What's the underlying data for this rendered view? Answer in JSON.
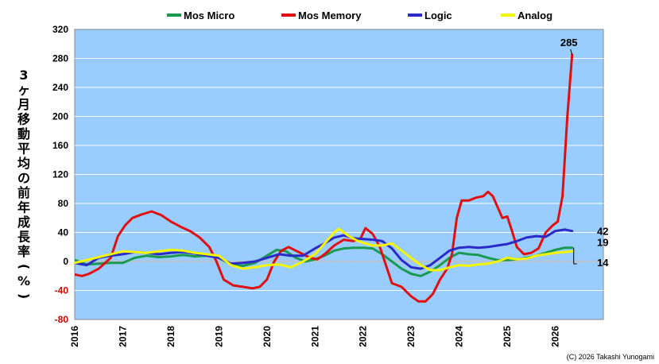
{
  "chart_data": {
    "type": "line",
    "title": "",
    "xlabel": "",
    "ylabel": "3ヶ月移動平均の前年成長率（%）",
    "ylim": [
      -80,
      320
    ],
    "yticks": [
      -80,
      -40,
      0,
      40,
      80,
      120,
      160,
      200,
      240,
      280,
      320
    ],
    "xlim": [
      2016.0,
      2027.0
    ],
    "xticks": [
      "2016",
      "2017",
      "2018",
      "2019",
      "2020",
      "2021",
      "2022",
      "2023",
      "2024",
      "2025",
      "2026"
    ],
    "grid": "horizontal",
    "legend_position": "top",
    "background_color": "#99ccff",
    "zero_line_color": "#c0c0c0",
    "negative_tick_color": "#cc0000",
    "credit": "(C)  2026 Takashi Yunogami",
    "series": [
      {
        "name": "Mos Micro",
        "color": "#1a9a50",
        "end_label": "19",
        "points": [
          [
            2016.0,
            2
          ],
          [
            2016.25,
            -4
          ],
          [
            2016.5,
            -3
          ],
          [
            2016.75,
            -2
          ],
          [
            2017.0,
            -2
          ],
          [
            2017.25,
            5
          ],
          [
            2017.5,
            8
          ],
          [
            2017.75,
            6
          ],
          [
            2018.0,
            7
          ],
          [
            2018.25,
            9
          ],
          [
            2018.5,
            7
          ],
          [
            2018.75,
            8
          ],
          [
            2019.0,
            5
          ],
          [
            2019.25,
            -4
          ],
          [
            2019.5,
            -6
          ],
          [
            2019.75,
            -2
          ],
          [
            2020.0,
            8
          ],
          [
            2020.2,
            16
          ],
          [
            2020.4,
            14
          ],
          [
            2020.6,
            5
          ],
          [
            2020.8,
            0
          ],
          [
            2021.0,
            3
          ],
          [
            2021.2,
            8
          ],
          [
            2021.4,
            15
          ],
          [
            2021.6,
            18
          ],
          [
            2021.8,
            19
          ],
          [
            2022.0,
            19
          ],
          [
            2022.2,
            18
          ],
          [
            2022.4,
            10
          ],
          [
            2022.6,
            0
          ],
          [
            2022.8,
            -10
          ],
          [
            2023.0,
            -17
          ],
          [
            2023.2,
            -20
          ],
          [
            2023.4,
            -14
          ],
          [
            2023.6,
            -5
          ],
          [
            2023.8,
            5
          ],
          [
            2024.0,
            12
          ],
          [
            2024.2,
            10
          ],
          [
            2024.4,
            9
          ],
          [
            2024.6,
            5
          ],
          [
            2024.8,
            2
          ],
          [
            2025.0,
            2
          ],
          [
            2025.2,
            3
          ],
          [
            2025.4,
            5
          ],
          [
            2025.6,
            8
          ],
          [
            2025.8,
            12
          ],
          [
            2026.0,
            16
          ],
          [
            2026.2,
            19
          ],
          [
            2026.35,
            19
          ]
        ]
      },
      {
        "name": "Mos Memory",
        "color": "#e01010",
        "end_label": "285",
        "points": [
          [
            2016.0,
            -18
          ],
          [
            2016.15,
            -20
          ],
          [
            2016.3,
            -17
          ],
          [
            2016.5,
            -10
          ],
          [
            2016.75,
            5
          ],
          [
            2016.9,
            35
          ],
          [
            2017.05,
            50
          ],
          [
            2017.2,
            60
          ],
          [
            2017.4,
            65
          ],
          [
            2017.6,
            69
          ],
          [
            2017.8,
            64
          ],
          [
            2018.0,
            55
          ],
          [
            2018.2,
            48
          ],
          [
            2018.4,
            42
          ],
          [
            2018.6,
            33
          ],
          [
            2018.8,
            20
          ],
          [
            2018.95,
            0
          ],
          [
            2019.1,
            -25
          ],
          [
            2019.3,
            -33
          ],
          [
            2019.5,
            -35
          ],
          [
            2019.7,
            -37
          ],
          [
            2019.85,
            -35
          ],
          [
            2020.0,
            -25
          ],
          [
            2020.15,
            0
          ],
          [
            2020.3,
            15
          ],
          [
            2020.45,
            20
          ],
          [
            2020.6,
            15
          ],
          [
            2020.75,
            10
          ],
          [
            2020.9,
            5
          ],
          [
            2021.05,
            3
          ],
          [
            2021.2,
            10
          ],
          [
            2021.4,
            22
          ],
          [
            2021.6,
            30
          ],
          [
            2021.8,
            28
          ],
          [
            2021.95,
            32
          ],
          [
            2022.05,
            46
          ],
          [
            2022.2,
            38
          ],
          [
            2022.35,
            20
          ],
          [
            2022.5,
            -10
          ],
          [
            2022.6,
            -30
          ],
          [
            2022.8,
            -35
          ],
          [
            2023.0,
            -48
          ],
          [
            2023.15,
            -55
          ],
          [
            2023.3,
            -55
          ],
          [
            2023.45,
            -45
          ],
          [
            2023.6,
            -25
          ],
          [
            2023.75,
            -10
          ],
          [
            2023.85,
            10
          ],
          [
            2023.95,
            60
          ],
          [
            2024.05,
            84
          ],
          [
            2024.2,
            84
          ],
          [
            2024.35,
            88
          ],
          [
            2024.5,
            90
          ],
          [
            2024.6,
            96
          ],
          [
            2024.7,
            90
          ],
          [
            2024.8,
            75
          ],
          [
            2024.9,
            60
          ],
          [
            2025.0,
            62
          ],
          [
            2025.1,
            42
          ],
          [
            2025.2,
            20
          ],
          [
            2025.35,
            10
          ],
          [
            2025.5,
            12
          ],
          [
            2025.65,
            18
          ],
          [
            2025.8,
            40
          ],
          [
            2025.95,
            50
          ],
          [
            2026.05,
            55
          ],
          [
            2026.15,
            90
          ],
          [
            2026.25,
            200
          ],
          [
            2026.35,
            285
          ]
        ]
      },
      {
        "name": "Logic",
        "color": "#2a2ac8",
        "end_label": "42",
        "points": [
          [
            2016.0,
            -2
          ],
          [
            2016.25,
            -5
          ],
          [
            2016.5,
            5
          ],
          [
            2016.75,
            8
          ],
          [
            2017.0,
            10
          ],
          [
            2017.25,
            13
          ],
          [
            2017.5,
            12
          ],
          [
            2017.75,
            10
          ],
          [
            2018.0,
            12
          ],
          [
            2018.25,
            13
          ],
          [
            2018.5,
            11
          ],
          [
            2018.75,
            8
          ],
          [
            2019.0,
            5
          ],
          [
            2019.25,
            -3
          ],
          [
            2019.5,
            -2
          ],
          [
            2019.75,
            0
          ],
          [
            2020.0,
            5
          ],
          [
            2020.25,
            10
          ],
          [
            2020.5,
            8
          ],
          [
            2020.75,
            8
          ],
          [
            2021.0,
            18
          ],
          [
            2021.2,
            25
          ],
          [
            2021.4,
            33
          ],
          [
            2021.6,
            36
          ],
          [
            2021.8,
            32
          ],
          [
            2022.0,
            31
          ],
          [
            2022.2,
            30
          ],
          [
            2022.4,
            28
          ],
          [
            2022.6,
            18
          ],
          [
            2022.8,
            2
          ],
          [
            2023.0,
            -8
          ],
          [
            2023.2,
            -10
          ],
          [
            2023.4,
            -5
          ],
          [
            2023.6,
            5
          ],
          [
            2023.8,
            15
          ],
          [
            2024.0,
            19
          ],
          [
            2024.2,
            20
          ],
          [
            2024.4,
            19
          ],
          [
            2024.6,
            20
          ],
          [
            2024.8,
            22
          ],
          [
            2025.0,
            24
          ],
          [
            2025.2,
            28
          ],
          [
            2025.4,
            33
          ],
          [
            2025.6,
            35
          ],
          [
            2025.8,
            34
          ],
          [
            2026.0,
            42
          ],
          [
            2026.2,
            44
          ],
          [
            2026.35,
            42
          ]
        ]
      },
      {
        "name": "Analog",
        "color": "#f5f500",
        "end_label": "14",
        "points": [
          [
            2016.0,
            -2
          ],
          [
            2016.25,
            2
          ],
          [
            2016.5,
            6
          ],
          [
            2016.75,
            10
          ],
          [
            2017.0,
            14
          ],
          [
            2017.25,
            13
          ],
          [
            2017.5,
            12
          ],
          [
            2017.75,
            14
          ],
          [
            2018.0,
            16
          ],
          [
            2018.25,
            15
          ],
          [
            2018.5,
            12
          ],
          [
            2018.75,
            10
          ],
          [
            2019.0,
            8
          ],
          [
            2019.25,
            -5
          ],
          [
            2019.5,
            -10
          ],
          [
            2019.75,
            -8
          ],
          [
            2020.0,
            -5
          ],
          [
            2020.25,
            -4
          ],
          [
            2020.5,
            -8
          ],
          [
            2020.75,
            0
          ],
          [
            2021.0,
            10
          ],
          [
            2021.2,
            25
          ],
          [
            2021.4,
            40
          ],
          [
            2021.5,
            45
          ],
          [
            2021.7,
            35
          ],
          [
            2021.9,
            28
          ],
          [
            2022.0,
            26
          ],
          [
            2022.2,
            22
          ],
          [
            2022.4,
            22
          ],
          [
            2022.6,
            25
          ],
          [
            2022.8,
            15
          ],
          [
            2023.0,
            5
          ],
          [
            2023.2,
            -5
          ],
          [
            2023.4,
            -12
          ],
          [
            2023.6,
            -12
          ],
          [
            2023.8,
            -8
          ],
          [
            2024.0,
            -5
          ],
          [
            2024.2,
            -6
          ],
          [
            2024.4,
            -4
          ],
          [
            2024.6,
            -3
          ],
          [
            2024.8,
            0
          ],
          [
            2025.0,
            5
          ],
          [
            2025.2,
            3
          ],
          [
            2025.4,
            4
          ],
          [
            2025.6,
            8
          ],
          [
            2025.8,
            10
          ],
          [
            2026.0,
            12
          ],
          [
            2026.2,
            13
          ],
          [
            2026.35,
            14
          ]
        ]
      }
    ]
  }
}
